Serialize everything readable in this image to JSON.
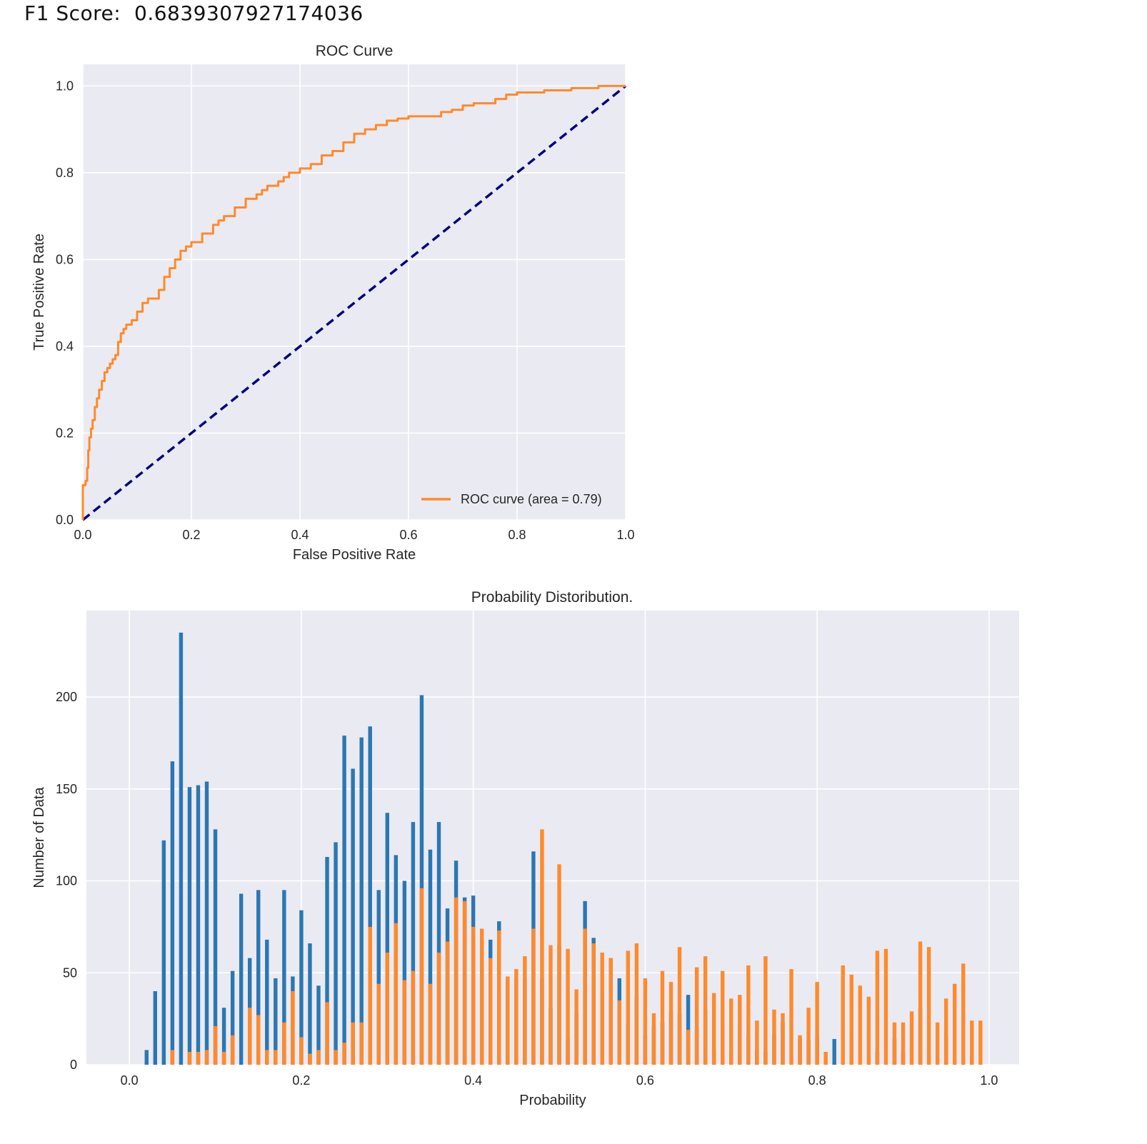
{
  "f1": {
    "label": "F1 Score:",
    "value": "0.6839307927174036"
  },
  "chart_data": [
    {
      "type": "line",
      "title": "ROC Curve",
      "xlabel": "False Positive Rate",
      "ylabel": "True Positive Rate",
      "xlim": [
        0.0,
        1.0
      ],
      "ylim": [
        0.0,
        1.05
      ],
      "xticks": [
        "0.0",
        "0.2",
        "0.4",
        "0.6",
        "0.8",
        "1.0"
      ],
      "yticks": [
        "0.0",
        "0.2",
        "0.4",
        "0.6",
        "0.8",
        "1.0"
      ],
      "grid": true,
      "legend": {
        "position": "lower-right",
        "entries": [
          "ROC curve (area = 0.79)"
        ]
      },
      "series": [
        {
          "name": "ROC curve (area = 0.79)",
          "color": "#ff8a2b",
          "x": [
            0.0,
            0.0,
            0.005,
            0.008,
            0.01,
            0.012,
            0.015,
            0.018,
            0.022,
            0.026,
            0.03,
            0.035,
            0.04,
            0.045,
            0.05,
            0.055,
            0.06,
            0.065,
            0.07,
            0.075,
            0.08,
            0.09,
            0.1,
            0.11,
            0.12,
            0.13,
            0.14,
            0.15,
            0.16,
            0.17,
            0.18,
            0.19,
            0.2,
            0.22,
            0.24,
            0.25,
            0.26,
            0.28,
            0.3,
            0.32,
            0.33,
            0.34,
            0.35,
            0.36,
            0.37,
            0.38,
            0.4,
            0.42,
            0.44,
            0.46,
            0.48,
            0.5,
            0.52,
            0.54,
            0.56,
            0.58,
            0.6,
            0.62,
            0.66,
            0.68,
            0.7,
            0.72,
            0.76,
            0.78,
            0.8,
            0.85,
            0.9,
            0.95,
            1.0
          ],
          "y": [
            0.0,
            0.08,
            0.09,
            0.12,
            0.16,
            0.19,
            0.21,
            0.23,
            0.26,
            0.28,
            0.3,
            0.32,
            0.34,
            0.35,
            0.36,
            0.37,
            0.38,
            0.41,
            0.43,
            0.44,
            0.45,
            0.46,
            0.48,
            0.5,
            0.51,
            0.51,
            0.53,
            0.56,
            0.58,
            0.6,
            0.62,
            0.63,
            0.64,
            0.66,
            0.68,
            0.69,
            0.7,
            0.72,
            0.74,
            0.75,
            0.76,
            0.77,
            0.77,
            0.78,
            0.79,
            0.8,
            0.81,
            0.82,
            0.84,
            0.85,
            0.87,
            0.89,
            0.9,
            0.91,
            0.92,
            0.925,
            0.93,
            0.93,
            0.94,
            0.945,
            0.955,
            0.96,
            0.97,
            0.98,
            0.985,
            0.99,
            0.995,
            1.0,
            1.0
          ]
        },
        {
          "name": "",
          "color": "#000080",
          "dashed": true,
          "x": [
            0.0,
            1.0
          ],
          "y": [
            0.0,
            1.0
          ]
        }
      ]
    },
    {
      "type": "bar",
      "title": "Probability Distoribution.",
      "xlabel": "Probability",
      "ylabel": "Number of Data",
      "xlim": [
        -0.05,
        1.035
      ],
      "ylim": [
        0,
        247
      ],
      "xticks": [
        "0.0",
        "0.2",
        "0.4",
        "0.6",
        "0.8",
        "1.0"
      ],
      "yticks": [
        "0",
        "50",
        "100",
        "150",
        "200"
      ],
      "grid": true,
      "bar_width": 0.0045,
      "series": [
        {
          "name": "",
          "color": "#2b77b2",
          "x": [
            0.02,
            0.03,
            0.04,
            0.05,
            0.06,
            0.07,
            0.08,
            0.09,
            0.1,
            0.11,
            0.12,
            0.13,
            0.14,
            0.15,
            0.16,
            0.17,
            0.18,
            0.19,
            0.2,
            0.21,
            0.22,
            0.23,
            0.24,
            0.25,
            0.26,
            0.27,
            0.28,
            0.29,
            0.3,
            0.31,
            0.32,
            0.33,
            0.34,
            0.35,
            0.36,
            0.37,
            0.38,
            0.39,
            0.4,
            0.41,
            0.42,
            0.43,
            0.44,
            0.45,
            0.46,
            0.47,
            0.48,
            0.49,
            0.5,
            0.51,
            0.52,
            0.53,
            0.54,
            0.55,
            0.56,
            0.57,
            0.58,
            0.59,
            0.6,
            0.61,
            0.62,
            0.63,
            0.64,
            0.65,
            0.66,
            0.67,
            0.68,
            0.69,
            0.7,
            0.71,
            0.72,
            0.73,
            0.74,
            0.75,
            0.76,
            0.78,
            0.79,
            0.8,
            0.82,
            0.84,
            0.87,
            0.89,
            0.9,
            0.92,
            0.95,
            0.98
          ],
          "values": [
            8,
            40,
            122,
            165,
            235,
            151,
            152,
            154,
            128,
            31,
            51,
            93,
            58,
            95,
            68,
            47,
            95,
            48,
            84,
            66,
            43,
            113,
            121,
            179,
            161,
            178,
            184,
            95,
            137,
            114,
            100,
            132,
            201,
            117,
            132,
            85,
            111,
            91,
            92,
            68,
            68,
            78,
            46,
            47,
            47,
            116,
            47,
            31,
            65,
            14,
            28,
            89,
            69,
            39,
            58,
            47,
            22,
            37,
            16,
            21,
            23,
            29,
            28,
            38,
            20,
            30,
            8,
            22,
            7,
            22,
            15,
            8,
            7,
            16,
            23,
            14,
            13,
            15,
            14,
            14,
            7,
            14,
            7,
            31,
            15,
            5
          ]
        },
        {
          "name": "",
          "color": "#ff8a2b",
          "x": [
            0.05,
            0.07,
            0.08,
            0.09,
            0.1,
            0.11,
            0.12,
            0.14,
            0.15,
            0.16,
            0.17,
            0.18,
            0.19,
            0.2,
            0.21,
            0.22,
            0.23,
            0.24,
            0.25,
            0.26,
            0.27,
            0.28,
            0.29,
            0.3,
            0.31,
            0.32,
            0.33,
            0.34,
            0.35,
            0.36,
            0.37,
            0.38,
            0.39,
            0.4,
            0.41,
            0.42,
            0.43,
            0.44,
            0.45,
            0.46,
            0.47,
            0.48,
            0.49,
            0.5,
            0.51,
            0.52,
            0.53,
            0.54,
            0.55,
            0.56,
            0.57,
            0.58,
            0.59,
            0.6,
            0.61,
            0.62,
            0.63,
            0.64,
            0.65,
            0.66,
            0.67,
            0.68,
            0.69,
            0.7,
            0.71,
            0.72,
            0.73,
            0.74,
            0.75,
            0.76,
            0.77,
            0.78,
            0.79,
            0.8,
            0.81,
            0.83,
            0.84,
            0.85,
            0.86,
            0.87,
            0.88,
            0.89,
            0.9,
            0.91,
            0.92,
            0.93,
            0.94,
            0.95,
            0.96,
            0.97,
            0.98,
            0.99
          ],
          "values": [
            8,
            7,
            7,
            8,
            21,
            7,
            16,
            31,
            27,
            8,
            8,
            23,
            40,
            15,
            6,
            8,
            34,
            8,
            12,
            23,
            23,
            75,
            44,
            61,
            77,
            46,
            51,
            96,
            44,
            61,
            67,
            91,
            89,
            75,
            74,
            58,
            73,
            48,
            52,
            59,
            74,
            128,
            65,
            109,
            63,
            41,
            74,
            66,
            61,
            58,
            35,
            62,
            66,
            47,
            28,
            51,
            45,
            64,
            19,
            53,
            59,
            39,
            51,
            36,
            38,
            54,
            24,
            59,
            30,
            28,
            52,
            16,
            31,
            45,
            7,
            54,
            49,
            43,
            37,
            62,
            63,
            23,
            23,
            29,
            67,
            64,
            23,
            36,
            44,
            55,
            24,
            24
          ]
        }
      ]
    }
  ]
}
